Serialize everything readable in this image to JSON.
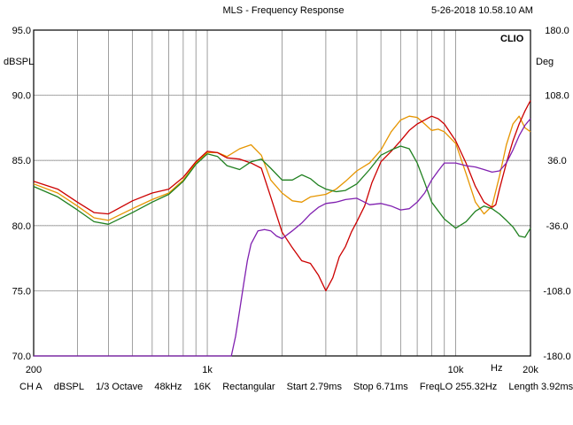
{
  "header": {
    "title": "MLS - Frequency Response",
    "timestamp": "5-26-2018 10.58.10 AM",
    "brand": "CLIO"
  },
  "axis_units": {
    "left": "dBSPL",
    "right": "Deg",
    "x": "Hz"
  },
  "footer": {
    "channel": "CH A",
    "unit": "dBSPL",
    "smoothing": "1/3 Octave",
    "rate": "48kHz",
    "size": "16K",
    "window": "Rectangular",
    "start": "Start 2.79ms",
    "stop": "Stop 6.71ms",
    "freqlo": "FreqLO 255.32Hz",
    "length": "Length 3.92ms"
  },
  "chart_data": {
    "type": "line",
    "x_scale": "log",
    "xlim": [
      200,
      20000
    ],
    "ylim": [
      70,
      95
    ],
    "y2lim": [
      -180,
      180
    ],
    "xlabel": "Hz",
    "ylabel": "dBSPL",
    "y2label": "Deg",
    "grid": true,
    "x_ticks": [
      {
        "value": 200,
        "label": "200"
      },
      {
        "value": 1000,
        "label": "1k"
      },
      {
        "value": 10000,
        "label": "10k"
      },
      {
        "value": 20000,
        "label": "20k"
      }
    ],
    "y_ticks": [
      {
        "value": 95,
        "label": "95.0"
      },
      {
        "value": 90,
        "label": "90.0"
      },
      {
        "value": 85,
        "label": "85.0"
      },
      {
        "value": 80,
        "label": "80.0"
      },
      {
        "value": 75,
        "label": "75.0"
      },
      {
        "value": 70,
        "label": "70.0"
      }
    ],
    "y2_ticks": [
      {
        "value": 180,
        "label": "180.0"
      },
      {
        "value": 108,
        "label": "108.0"
      },
      {
        "value": 36,
        "label": "36.0"
      },
      {
        "value": -36,
        "label": "-36.0"
      },
      {
        "value": -108,
        "label": "-108.0"
      },
      {
        "value": -180,
        "label": "-180.0"
      }
    ],
    "series": [
      {
        "color": "#e69500",
        "x": [
          200,
          250,
          300,
          350,
          400,
          500,
          600,
          700,
          800,
          900,
          1000,
          1100,
          1200,
          1350,
          1500,
          1650,
          1800,
          2000,
          2200,
          2400,
          2600,
          2800,
          3000,
          3300,
          3600,
          4000,
          4500,
          5000,
          5500,
          6000,
          6500,
          7000,
          7500,
          8000,
          8500,
          9000,
          10000,
          11000,
          12000,
          13000,
          14000,
          15000,
          16000,
          17000,
          18000,
          19000,
          20000
        ],
        "y": [
          83.2,
          82.5,
          81.5,
          80.6,
          80.4,
          81.3,
          82,
          82.5,
          83.5,
          84.8,
          85.6,
          85.6,
          85.3,
          85.9,
          86.2,
          85.4,
          83.5,
          82.5,
          81.9,
          81.8,
          82.2,
          82.3,
          82.4,
          82.8,
          83.4,
          84.2,
          84.8,
          85.8,
          87.2,
          88.1,
          88.4,
          88.3,
          87.8,
          87.3,
          87.4,
          87.2,
          86.3,
          84,
          81.8,
          80.9,
          81.5,
          83.8,
          86.2,
          87.8,
          88.4,
          87.5,
          87.2
        ]
      },
      {
        "color": "#cc0000",
        "x": [
          200,
          250,
          300,
          350,
          400,
          500,
          600,
          700,
          800,
          900,
          1000,
          1100,
          1200,
          1350,
          1500,
          1650,
          1800,
          2000,
          2200,
          2400,
          2600,
          2800,
          3000,
          3200,
          3400,
          3600,
          3800,
          4000,
          4300,
          4600,
          5000,
          5500,
          6000,
          6500,
          7000,
          7500,
          8000,
          8500,
          9000,
          10000,
          11000,
          12000,
          13000,
          14000,
          14500,
          15000,
          16000,
          17000,
          18000,
          19000,
          20000
        ],
        "y": [
          83.4,
          82.8,
          81.8,
          81,
          80.9,
          81.9,
          82.5,
          82.8,
          83.7,
          84.9,
          85.7,
          85.6,
          85.2,
          85.1,
          84.8,
          84.4,
          82.2,
          79.5,
          78.3,
          77.3,
          77.1,
          76.2,
          75,
          76,
          77.6,
          78.4,
          79.5,
          80.3,
          81.5,
          83.3,
          84.9,
          85.7,
          86.5,
          87.3,
          87.8,
          88.1,
          88.4,
          88.2,
          87.8,
          86.5,
          84.8,
          83,
          81.8,
          81.4,
          81.6,
          82.8,
          84.8,
          86.5,
          87.8,
          88.8,
          89.6
        ]
      },
      {
        "color": "#208020",
        "x": [
          200,
          250,
          300,
          350,
          400,
          500,
          600,
          700,
          800,
          900,
          1000,
          1100,
          1200,
          1350,
          1500,
          1650,
          1800,
          2000,
          2200,
          2400,
          2600,
          2800,
          3000,
          3300,
          3600,
          4000,
          4500,
          5000,
          5500,
          6000,
          6500,
          7000,
          7500,
          8000,
          9000,
          10000,
          11000,
          12000,
          13000,
          14000,
          15000,
          16000,
          17000,
          18000,
          19000,
          20000
        ],
        "y": [
          83,
          82.2,
          81.2,
          80.3,
          80.1,
          81,
          81.8,
          82.4,
          83.4,
          84.7,
          85.5,
          85.3,
          84.6,
          84.3,
          84.9,
          85.1,
          84.4,
          83.5,
          83.5,
          83.9,
          83.6,
          83.1,
          82.8,
          82.6,
          82.7,
          83.2,
          84.3,
          85.4,
          85.8,
          86.1,
          85.9,
          84.8,
          83.3,
          81.8,
          80.5,
          79.8,
          80.3,
          81.1,
          81.5,
          81.3,
          80.9,
          80.4,
          79.9,
          79.2,
          79.1,
          79.8
        ]
      },
      {
        "color": "#8020b0",
        "x": [
          200,
          800,
          1000,
          1200,
          1250,
          1300,
          1350,
          1400,
          1450,
          1500,
          1600,
          1700,
          1800,
          1900,
          2000,
          2200,
          2400,
          2600,
          2800,
          3000,
          3300,
          3600,
          4000,
          4500,
          5000,
          5500,
          6000,
          6500,
          7000,
          7500,
          8000,
          8500,
          9000,
          10000,
          11000,
          12000,
          13000,
          14000,
          15000,
          16000,
          17000,
          18000,
          19000,
          20000
        ],
        "y": [
          70,
          70,
          70,
          70,
          70,
          71.5,
          73.5,
          75.5,
          77.3,
          78.6,
          79.6,
          79.7,
          79.6,
          79.2,
          79.0,
          79.6,
          80.2,
          80.9,
          81.4,
          81.7,
          81.8,
          82,
          82.1,
          81.6,
          81.7,
          81.5,
          81.2,
          81.3,
          81.8,
          82.5,
          83.5,
          84.2,
          84.8,
          84.8,
          84.6,
          84.5,
          84.3,
          84.1,
          84.2,
          84.8,
          85.8,
          86.9,
          87.7,
          88.2
        ]
      }
    ]
  }
}
